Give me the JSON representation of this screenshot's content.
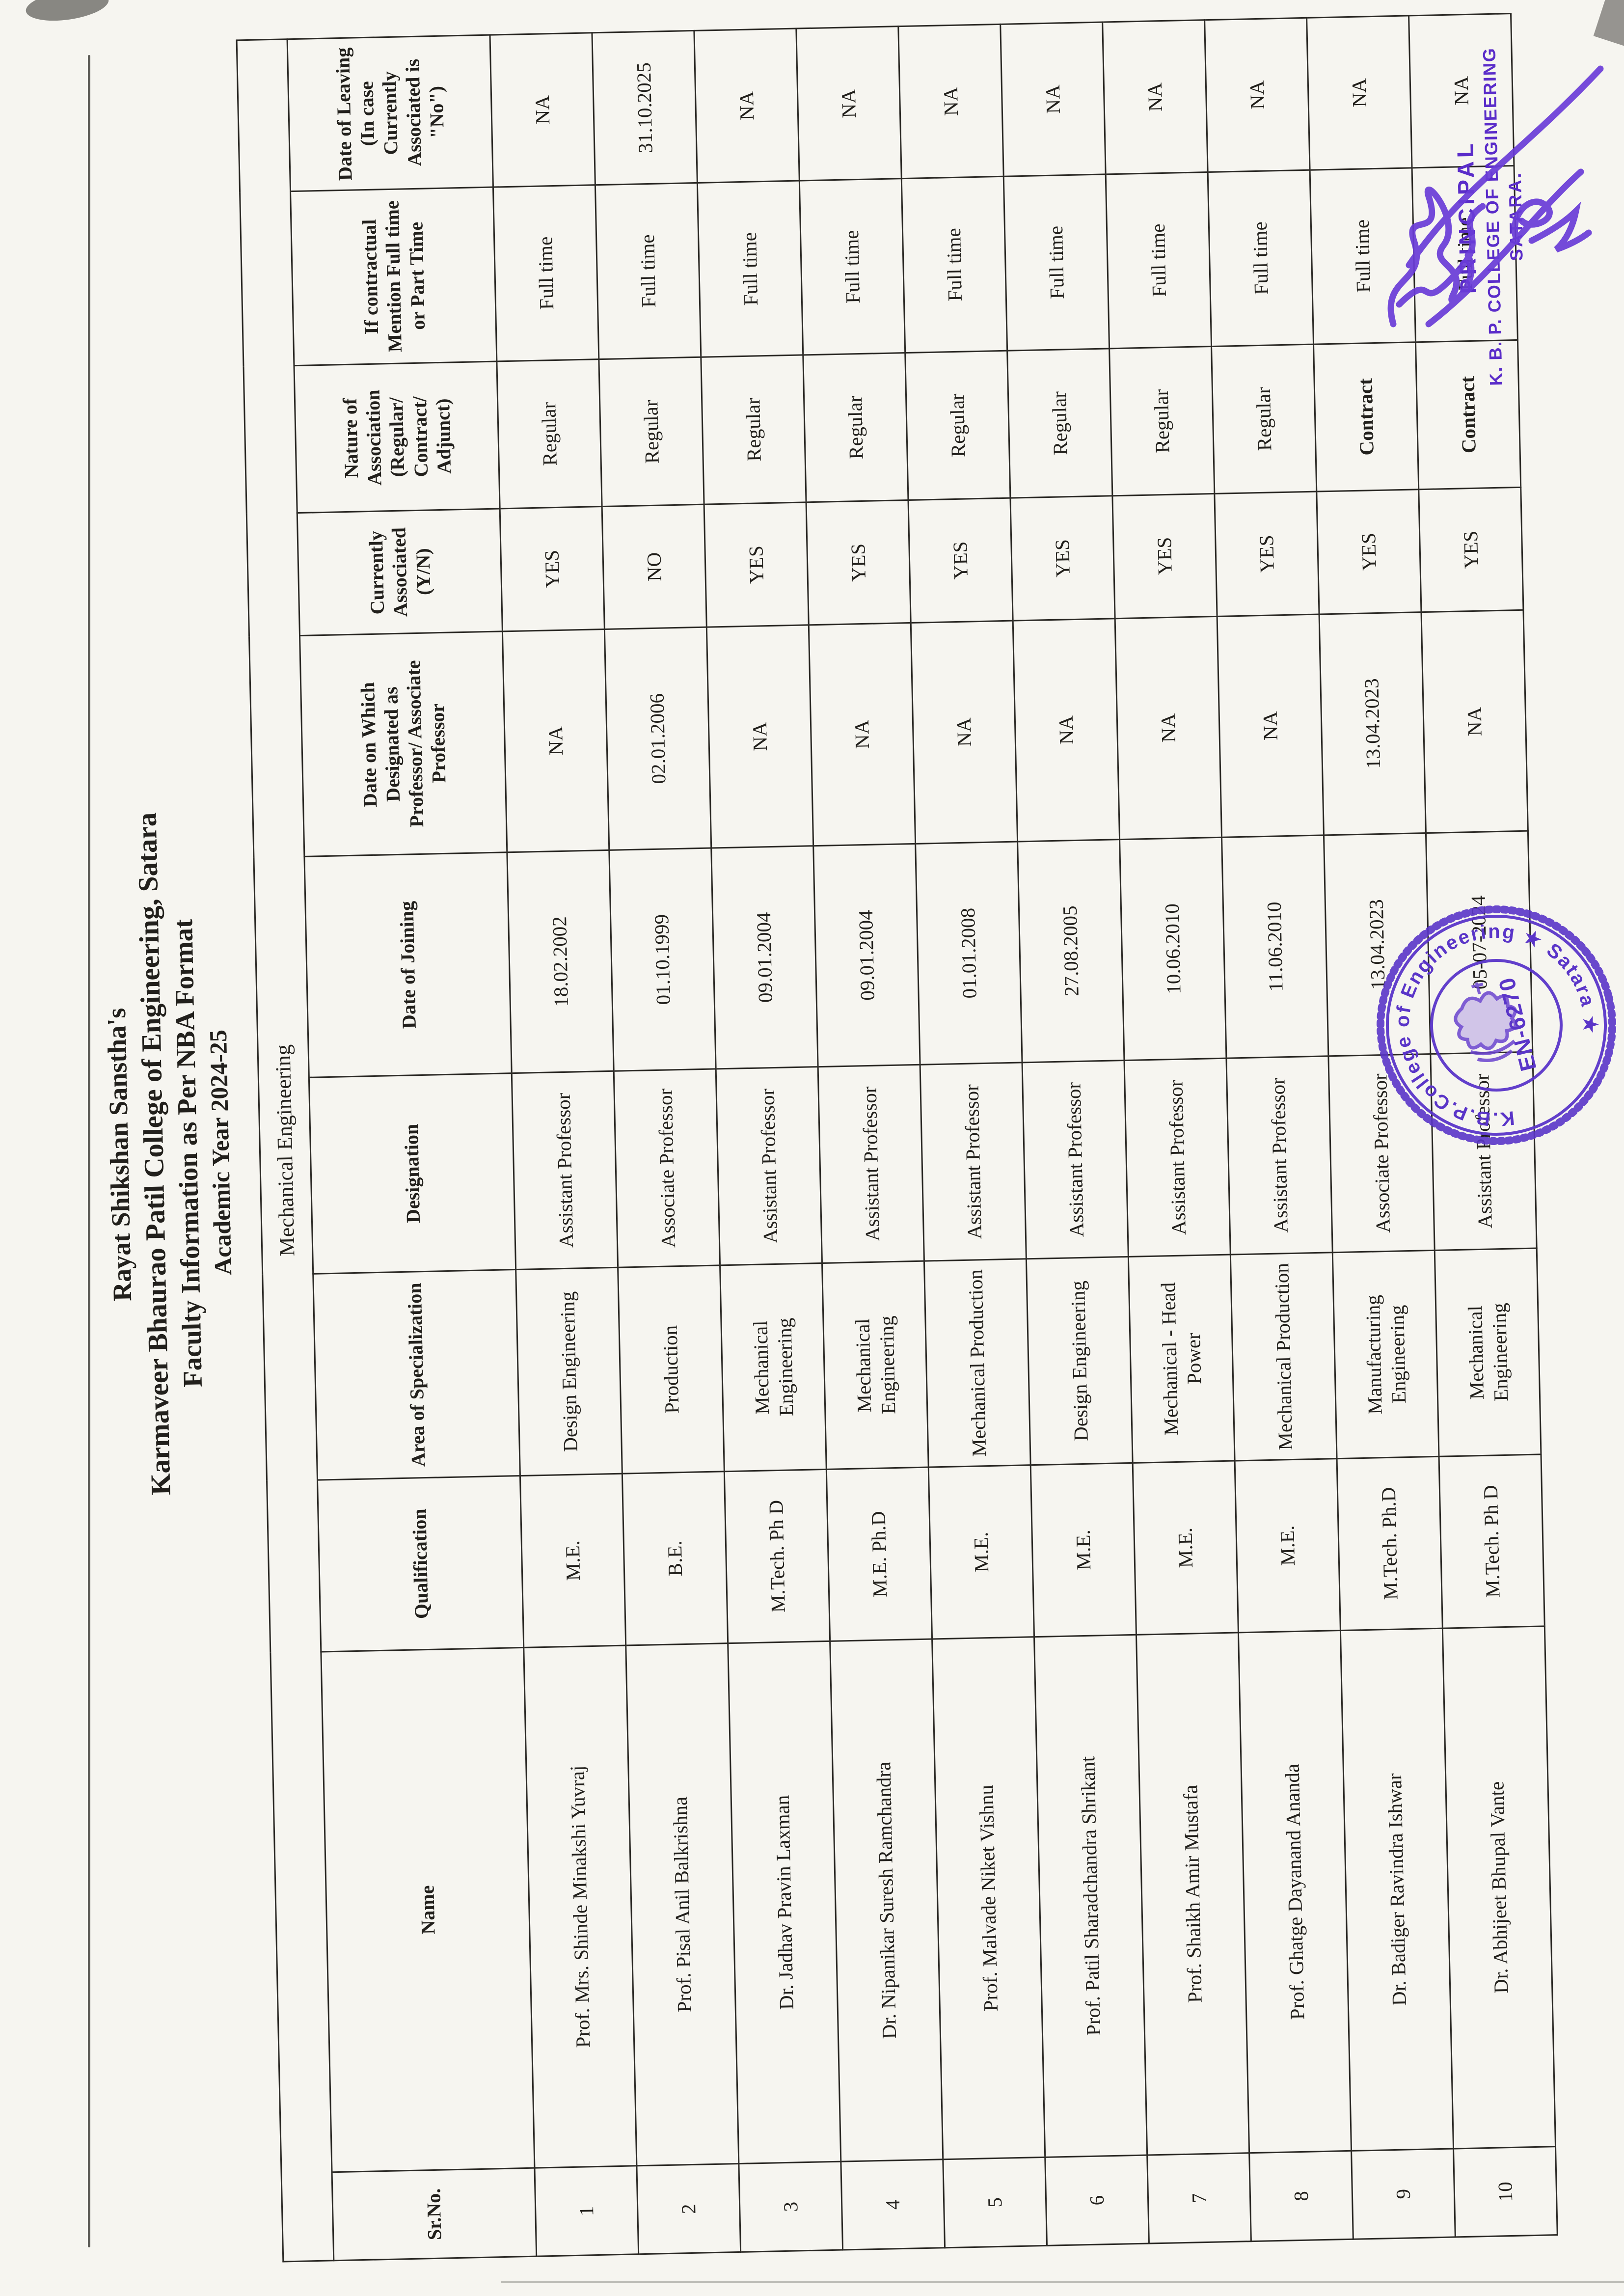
{
  "title": {
    "line1": "Rayat Shikshan Sanstha's",
    "line2": "Karmaveer Bhaurao Patil College of Engineering, Satara",
    "line3": "Faculty Information as Per NBA Format",
    "line4": "Academic Year 2024-25"
  },
  "table": {
    "department": "Mechanical Engineering",
    "columns": [
      "Sr.No.",
      "Name",
      "Qualification",
      "Area of Specialization",
      "Designation",
      "Date of Joining",
      "Date on Which Designated as Professor/ Associate Professor",
      "Currently Associated (Y/N)",
      "Nature of Association (Regular/ Contract/ Adjunct)",
      "If contractual Mention Full time or Part Time",
      "Date of Leaving (In case Currently Associated is \"No\")"
    ],
    "rows": [
      [
        "1",
        "Prof. Mrs. Shinde Minakshi Yuvraj",
        "M.E.",
        "Design Engineering",
        "Assistant Professor",
        "18.02.2002",
        "NA",
        "YES",
        "Regular",
        "Full time",
        "NA"
      ],
      [
        "2",
        "Prof. Pisal Anil Balkrishna",
        "B.E.",
        "Production",
        "Associate Professor",
        "01.10.1999",
        "02.01.2006",
        "NO",
        "Regular",
        "Full time",
        "31.10.2025"
      ],
      [
        "3",
        "Dr. Jadhav Pravin Laxman",
        "M.Tech. Ph D",
        "Mechanical Engineering",
        "Assistant Professor",
        "09.01.2004",
        "NA",
        "YES",
        "Regular",
        "Full time",
        "NA"
      ],
      [
        "4",
        "Dr. Nipanikar Suresh Ramchandra",
        "M.E. Ph.D",
        "Mechanical Engineering",
        "Assistant Professor",
        "09.01.2004",
        "NA",
        "YES",
        "Regular",
        "Full time",
        "NA"
      ],
      [
        "5",
        "Prof. Malvade Niket Vishnu",
        "M.E.",
        "Mechanical Production",
        "Assistant Professor",
        "01.01.2008",
        "NA",
        "YES",
        "Regular",
        "Full time",
        "NA"
      ],
      [
        "6",
        "Prof. Patil Sharadchandra Shrikant",
        "M.E.",
        "Design Engineering",
        "Assistant Professor",
        "27.08.2005",
        "NA",
        "YES",
        "Regular",
        "Full time",
        "NA"
      ],
      [
        "7",
        "Prof. Shaikh Amir Mustafa",
        "M.E.",
        "Mechanical - Head Power",
        "Assistant Professor",
        "10.06.2010",
        "NA",
        "YES",
        "Regular",
        "Full time",
        "NA"
      ],
      [
        "8",
        "Prof. Ghatge Dayanand Ananda",
        "M.E.",
        "Mechanical Production",
        "Assistant Professor",
        "11.06.2010",
        "NA",
        "YES",
        "Regular",
        "Full time",
        "NA"
      ],
      [
        "9",
        "Dr. Badiger Ravindra Ishwar",
        "M.Tech. Ph.D",
        "Manufacturing Engineering",
        "Associate Professor",
        "13.04.2023",
        "13.04.2023",
        "YES",
        "Contract",
        "Full time",
        "NA"
      ],
      [
        "10",
        "Dr. Abhijeet Bhupal Vante",
        "M.Tech. Ph D",
        "Mechanical Engineering",
        "Assistant Professor",
        "05-07-2024",
        "NA",
        "YES",
        "Contract",
        "Full time",
        "NA"
      ]
    ]
  },
  "principal_block": {
    "line1": "PRINCIPAL",
    "line2": "K. B. P. COLLEGE OF ENGINEERING",
    "line3": "SATARA."
  },
  "seal": {
    "ring_text": "K.B.P.College of Engineering ★ Satara ★",
    "center_text": "EN-6270"
  },
  "colors": {
    "ink": "#22201c",
    "stamp_purple": "#5a2cc9",
    "signature_purple": "#6a3cd8",
    "paper": "#f6f5f0"
  }
}
